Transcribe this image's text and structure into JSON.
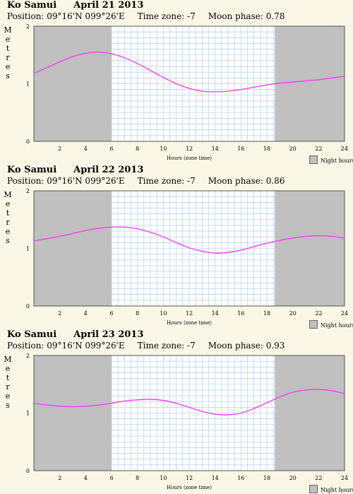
{
  "location": "Ko Samui",
  "colors": {
    "night": "#c0c0c0",
    "day": "#ffffff",
    "grid": "#a8c8ee",
    "curve": "#ff33ff",
    "frame": "#555555"
  },
  "ylabel": "Metres",
  "xlabel": "Hours (zone time)",
  "legend_label": "Night hours",
  "panels": [
    {
      "title": "Ko Samui",
      "date": "April 21 2013",
      "position": "Position: 09°16'N 099°26'E",
      "timezone": "Time zone: -7",
      "moon": "Moon phase: 0.78",
      "chart_data": {
        "type": "line",
        "xlabel": "Hours (zone time)",
        "ylabel": "Metres",
        "xlim": [
          0,
          24
        ],
        "ylim": [
          0,
          2
        ],
        "xticks": [
          2,
          4,
          6,
          8,
          10,
          12,
          14,
          16,
          18,
          20,
          22,
          24
        ],
        "yticks": [
          0,
          1,
          2
        ],
        "night": [
          [
            0,
            6.0
          ],
          [
            18.6,
            24
          ]
        ],
        "grid": true,
        "x": [
          0,
          1,
          2,
          3,
          4,
          5,
          6,
          7,
          8,
          9,
          10,
          11,
          12,
          13,
          14,
          15,
          16,
          17,
          18,
          19,
          20,
          21,
          22,
          23,
          24
        ],
        "y": [
          1.18,
          1.28,
          1.38,
          1.47,
          1.53,
          1.55,
          1.52,
          1.45,
          1.35,
          1.23,
          1.11,
          1.0,
          0.92,
          0.87,
          0.86,
          0.87,
          0.9,
          0.94,
          0.98,
          1.01,
          1.03,
          1.05,
          1.07,
          1.1,
          1.13
        ]
      }
    },
    {
      "title": "Ko Samui",
      "date": "April 22 2013",
      "position": "Position: 09°16'N 099°26'E",
      "timezone": "Time zone: -7",
      "moon": "Moon phase: 0.86",
      "chart_data": {
        "type": "line",
        "xlabel": "Hours (zone time)",
        "ylabel": "Metres",
        "xlim": [
          0,
          24
        ],
        "ylim": [
          0,
          2
        ],
        "xticks": [
          2,
          4,
          6,
          8,
          10,
          12,
          14,
          16,
          18,
          20,
          22,
          24
        ],
        "yticks": [
          0,
          1,
          2
        ],
        "night": [
          [
            0,
            6.0
          ],
          [
            18.6,
            24
          ]
        ],
        "grid": true,
        "x": [
          0,
          1,
          2,
          3,
          4,
          5,
          6,
          7,
          8,
          9,
          10,
          11,
          12,
          13,
          14,
          15,
          16,
          17,
          18,
          19,
          20,
          21,
          22,
          23,
          24
        ],
        "y": [
          1.13,
          1.17,
          1.21,
          1.26,
          1.31,
          1.35,
          1.37,
          1.37,
          1.34,
          1.28,
          1.2,
          1.1,
          1.01,
          0.95,
          0.92,
          0.93,
          0.97,
          1.03,
          1.09,
          1.14,
          1.18,
          1.21,
          1.22,
          1.21,
          1.18
        ]
      }
    },
    {
      "title": "Ko Samui",
      "date": "April 23 2013",
      "position": "Position: 09°16'N 099°26'E",
      "timezone": "Time zone: -7",
      "moon": "Moon phase: 0.93",
      "chart_data": {
        "type": "line",
        "xlabel": "Hours (zone time)",
        "ylabel": "Metres",
        "xlim": [
          0,
          24
        ],
        "ylim": [
          0,
          2
        ],
        "xticks": [
          2,
          4,
          6,
          8,
          10,
          12,
          14,
          16,
          18,
          20,
          22,
          24
        ],
        "yticks": [
          0,
          1,
          2
        ],
        "night": [
          [
            0,
            6.0
          ],
          [
            18.6,
            24
          ]
        ],
        "grid": true,
        "x": [
          0,
          1,
          2,
          3,
          4,
          5,
          6,
          7,
          8,
          9,
          10,
          11,
          12,
          13,
          14,
          15,
          16,
          17,
          18,
          19,
          20,
          21,
          22,
          23,
          24
        ],
        "y": [
          1.17,
          1.14,
          1.12,
          1.11,
          1.12,
          1.14,
          1.17,
          1.21,
          1.23,
          1.24,
          1.22,
          1.17,
          1.1,
          1.03,
          0.98,
          0.97,
          1.0,
          1.08,
          1.18,
          1.28,
          1.36,
          1.4,
          1.41,
          1.39,
          1.34
        ]
      }
    }
  ]
}
